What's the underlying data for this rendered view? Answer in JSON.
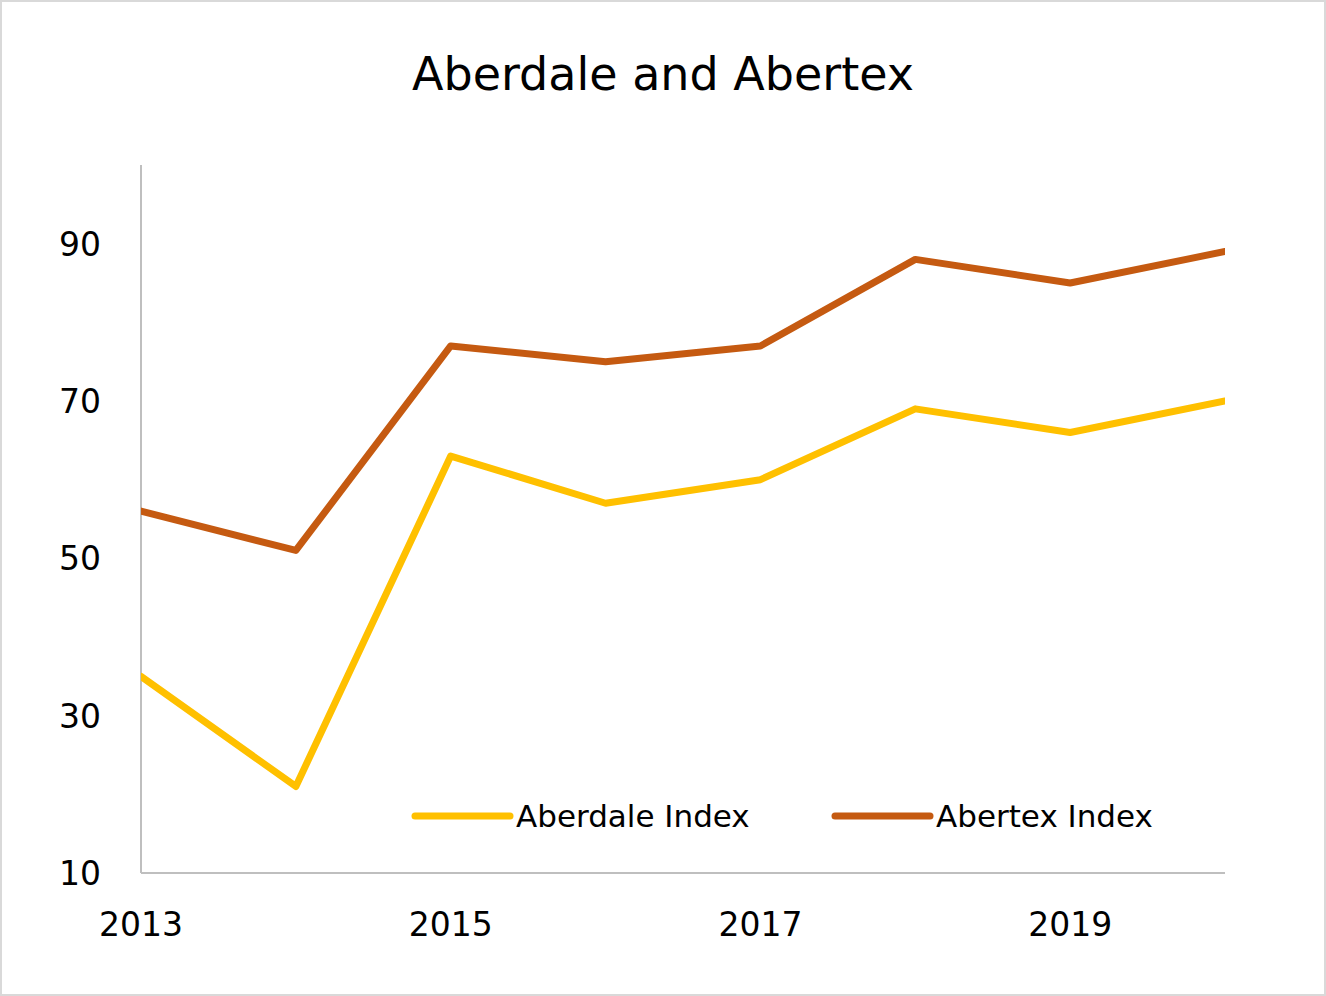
{
  "chart_data": {
    "type": "line",
    "title": "Aberdale and Abertex",
    "x": [
      2013,
      2014,
      2015,
      2016,
      2017,
      2018,
      2019,
      2020
    ],
    "xlim": [
      2013,
      2020
    ],
    "xticks": [
      2013,
      2015,
      2017,
      2019
    ],
    "ylim": [
      10,
      100
    ],
    "yticks": [
      10,
      30,
      50,
      70,
      90
    ],
    "grid": false,
    "legend": "lower right",
    "series": [
      {
        "name": "Aberdale Index",
        "color": "#ffc000",
        "values": [
          35,
          21,
          63,
          57,
          60,
          69,
          66,
          70
        ]
      },
      {
        "name": "Abertex Index",
        "color": "#c55a11",
        "values": [
          56,
          51,
          77,
          75,
          77,
          88,
          85,
          89
        ]
      }
    ]
  }
}
